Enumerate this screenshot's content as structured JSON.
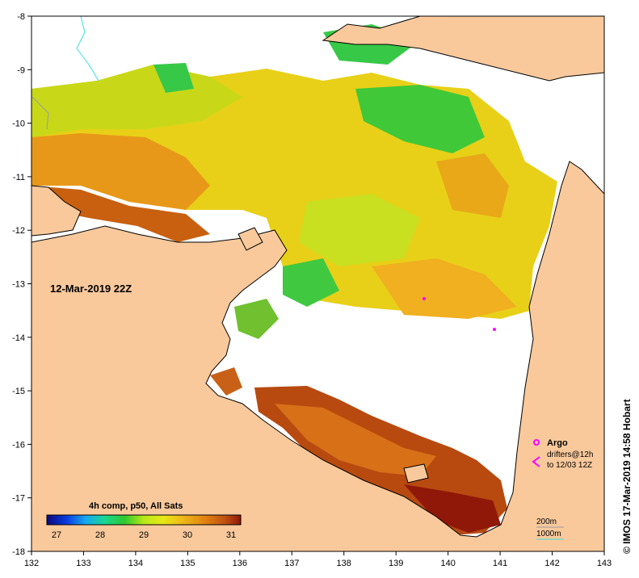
{
  "map": {
    "date_label": "12-Mar-2019 22Z",
    "credit": "© IMOS 17-Mar-2019 14:58 Hobart",
    "x_ticks": [
      "132",
      "133",
      "134",
      "135",
      "136",
      "137",
      "138",
      "139",
      "140",
      "141",
      "142",
      "143"
    ],
    "y_ticks": [
      "-8",
      "-9",
      "-10",
      "-11",
      "-12",
      "-13",
      "-14",
      "-15",
      "-16",
      "-17",
      "-18"
    ],
    "colors": {
      "land": "#f9c99c",
      "nodata": "#ffffff",
      "coast": "#000000",
      "isobath_200": "#9a9a9a",
      "isobath_1000": "#38e0e0",
      "argo": "#ff00ff"
    }
  },
  "colorbar": {
    "title": "4h comp, p50, All Sats",
    "ticks": [
      "27",
      "28",
      "29",
      "30",
      "31"
    ],
    "gradient": [
      "#0a0a7c",
      "#0a3ae0",
      "#18a8f0",
      "#18d890",
      "#30c830",
      "#b8e818",
      "#e8e818",
      "#f0b818",
      "#e08010",
      "#c05010",
      "#901808"
    ]
  },
  "legend": {
    "argo_label": "Argo",
    "drifters_label": "drifters@12h",
    "drifters_to": "to 12/03 12Z",
    "iso200": "200m",
    "iso1000": "1000m"
  }
}
